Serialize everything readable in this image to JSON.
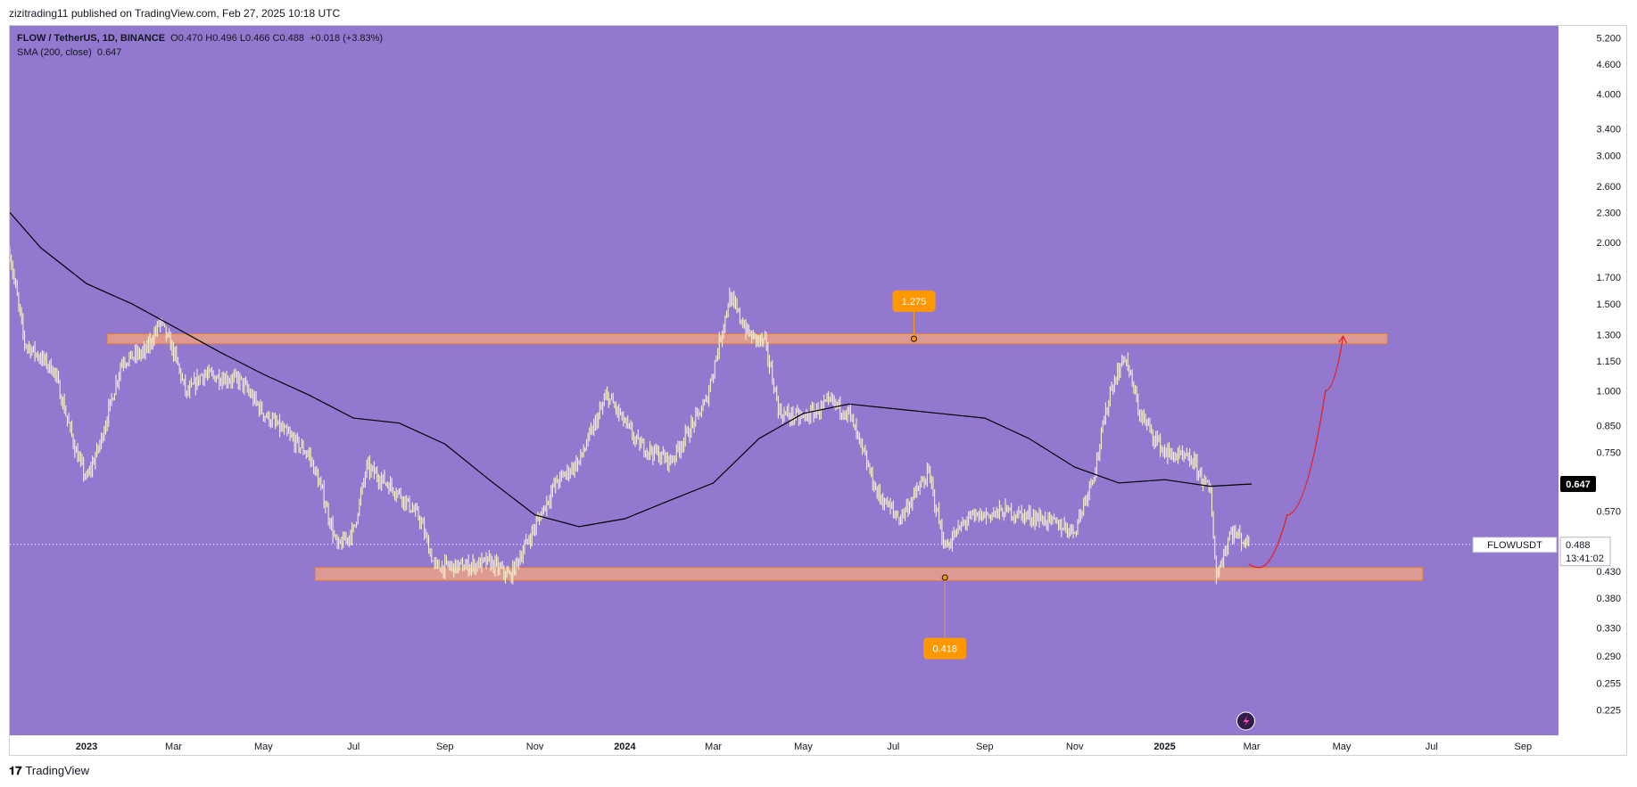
{
  "header": {
    "text": "zizitrading11 published on TradingView.com, Feb 27, 2025 10:18 UTC"
  },
  "legend": {
    "symbol": "FLOW / TetherUS, 1D, BINANCE",
    "ohlc": "O0.470 H0.496 L0.466 C0.488",
    "change": "+0.018 (+3.83%)",
    "sma_label": "SMA (200, close)",
    "sma_value": "0.647"
  },
  "footer": {
    "brand": "TradingView"
  },
  "colors": {
    "background": "#9378cf",
    "candle": "#f7f2c9",
    "zone": "#f4a57f",
    "sma": "#000000",
    "label_orange": "#ff9800",
    "projection": "#e02424",
    "accent_circle": "#311c4a"
  },
  "chart_data": {
    "type": "candlestick",
    "title": "",
    "symbol": "FLOWUSDT",
    "last_price": "0.488",
    "countdown": "13:41:02",
    "sma_tag": "0.647",
    "y_scale": "log",
    "ylim": [
      0.2,
      5.5
    ],
    "y_ticks": [
      "5.200",
      "4.600",
      "4.000",
      "3.400",
      "3.000",
      "2.600",
      "2.300",
      "2.000",
      "1.700",
      "1.500",
      "1.300",
      "1.150",
      "1.000",
      "0.850",
      "0.750",
      "0.570",
      "0.430",
      "0.380",
      "0.330",
      "0.290",
      "0.255",
      "0.225"
    ],
    "x_ticks": [
      "2023",
      "Mar",
      "May",
      "Jul",
      "Sep",
      "Nov",
      "2024",
      "Mar",
      "May",
      "Jul",
      "Sep",
      "Nov",
      "2025",
      "Mar",
      "May",
      "Jul",
      "Sep"
    ],
    "x_range": [
      "2022-11-10",
      "2025-09-25"
    ],
    "price_path": [
      [
        "2022-11-10",
        1.9
      ],
      [
        "2022-11-20",
        1.25
      ],
      [
        "2022-12-10",
        1.1
      ],
      [
        "2022-12-25",
        0.75
      ],
      [
        "2023-01-01",
        0.66
      ],
      [
        "2023-01-10",
        0.78
      ],
      [
        "2023-01-25",
        1.15
      ],
      [
        "2023-02-10",
        1.2
      ],
      [
        "2023-02-20",
        1.38
      ],
      [
        "2023-03-01",
        1.2
      ],
      [
        "2023-03-10",
        0.98
      ],
      [
        "2023-03-20",
        1.08
      ],
      [
        "2023-04-15",
        1.05
      ],
      [
        "2023-05-01",
        0.9
      ],
      [
        "2023-05-20",
        0.8
      ],
      [
        "2023-06-01",
        0.74
      ],
      [
        "2023-06-10",
        0.62
      ],
      [
        "2023-06-20",
        0.48
      ],
      [
        "2023-07-01",
        0.52
      ],
      [
        "2023-07-10",
        0.7
      ],
      [
        "2023-08-01",
        0.62
      ],
      [
        "2023-08-15",
        0.55
      ],
      [
        "2023-08-25",
        0.44
      ],
      [
        "2023-09-15",
        0.44
      ],
      [
        "2023-10-01",
        0.45
      ],
      [
        "2023-10-15",
        0.42
      ],
      [
        "2023-11-01",
        0.53
      ],
      [
        "2023-11-15",
        0.65
      ],
      [
        "2023-12-01",
        0.72
      ],
      [
        "2023-12-20",
        0.98
      ],
      [
        "2024-01-10",
        0.78
      ],
      [
        "2024-02-01",
        0.72
      ],
      [
        "2024-02-25",
        0.95
      ],
      [
        "2024-03-12",
        1.55
      ],
      [
        "2024-03-25",
        1.3
      ],
      [
        "2024-04-05",
        1.25
      ],
      [
        "2024-04-15",
        0.9
      ],
      [
        "2024-05-01",
        0.88
      ],
      [
        "2024-05-20",
        0.95
      ],
      [
        "2024-06-01",
        0.9
      ],
      [
        "2024-06-20",
        0.62
      ],
      [
        "2024-07-05",
        0.55
      ],
      [
        "2024-07-25",
        0.68
      ],
      [
        "2024-08-05",
        0.48
      ],
      [
        "2024-08-20",
        0.55
      ],
      [
        "2024-09-15",
        0.57
      ],
      [
        "2024-10-10",
        0.55
      ],
      [
        "2024-11-01",
        0.52
      ],
      [
        "2024-11-15",
        0.7
      ],
      [
        "2024-11-25",
        1.0
      ],
      [
        "2024-12-05",
        1.18
      ],
      [
        "2024-12-15",
        0.9
      ],
      [
        "2025-01-01",
        0.75
      ],
      [
        "2025-01-20",
        0.72
      ],
      [
        "2025-02-01",
        0.62
      ],
      [
        "2025-02-05",
        0.42
      ],
      [
        "2025-02-15",
        0.52
      ],
      [
        "2025-02-27",
        0.488
      ]
    ],
    "sma_200": [
      [
        "2022-11-10",
        2.3
      ],
      [
        "2022-12-01",
        1.95
      ],
      [
        "2023-01-01",
        1.65
      ],
      [
        "2023-02-01",
        1.5
      ],
      [
        "2023-03-01",
        1.35
      ],
      [
        "2023-04-01",
        1.2
      ],
      [
        "2023-05-01",
        1.08
      ],
      [
        "2023-06-01",
        0.98
      ],
      [
        "2023-07-01",
        0.88
      ],
      [
        "2023-08-01",
        0.86
      ],
      [
        "2023-09-01",
        0.78
      ],
      [
        "2023-10-01",
        0.66
      ],
      [
        "2023-11-01",
        0.56
      ],
      [
        "2023-12-01",
        0.53
      ],
      [
        "2024-01-01",
        0.55
      ],
      [
        "2024-02-01",
        0.6
      ],
      [
        "2024-03-01",
        0.65
      ],
      [
        "2024-04-01",
        0.8
      ],
      [
        "2024-05-01",
        0.9
      ],
      [
        "2024-06-01",
        0.94
      ],
      [
        "2024-07-01",
        0.92
      ],
      [
        "2024-08-01",
        0.9
      ],
      [
        "2024-09-01",
        0.88
      ],
      [
        "2024-10-01",
        0.8
      ],
      [
        "2024-11-01",
        0.7
      ],
      [
        "2024-12-01",
        0.65
      ],
      [
        "2025-01-01",
        0.66
      ],
      [
        "2025-02-01",
        0.64
      ],
      [
        "2025-03-01",
        0.647
      ]
    ],
    "zones": [
      {
        "from": "2023-01-15",
        "to": "2025-06-01",
        "low": 1.245,
        "high": 1.305
      },
      {
        "from": "2023-06-05",
        "to": "2025-06-25",
        "low": 0.412,
        "high": 0.438
      }
    ],
    "annotations": [
      {
        "text": "1.275",
        "date": "2024-07-15",
        "price": 1.275,
        "label_price": 1.52,
        "position": "above"
      },
      {
        "text": "0.418",
        "date": "2024-08-05",
        "price": 0.418,
        "label_price": 0.3,
        "position": "below"
      }
    ],
    "projection": [
      [
        "2025-02-27",
        0.445
      ],
      [
        "2025-03-06",
        0.438
      ],
      [
        "2025-03-25",
        0.56
      ],
      [
        "2025-04-20",
        1.0
      ],
      [
        "2025-05-02",
        1.29
      ]
    ],
    "grid": false,
    "legend_position": "top-left"
  }
}
